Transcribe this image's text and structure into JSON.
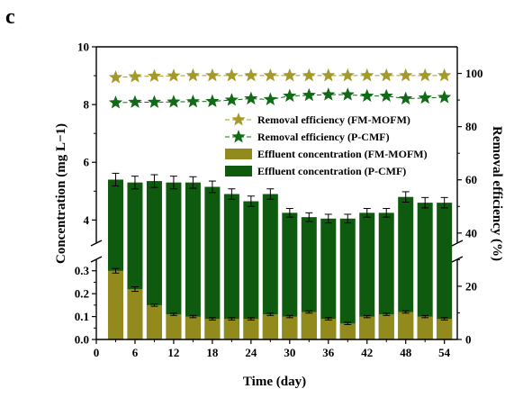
{
  "panel_label": "c",
  "colors": {
    "pcmf": "#0e5a0e",
    "fmmofm": "#938a1e",
    "star_fmmofm": "#a39a2a",
    "star_pcmf": "#116a16",
    "axis": "#000000"
  },
  "chart_data": {
    "type": "bar",
    "xlabel": "Time (day)",
    "ylabel": "Concentration (mg L−1)",
    "ylabel_right": "Removal efficiency (%)",
    "x_ticks": [
      0,
      6,
      12,
      18,
      24,
      30,
      36,
      42,
      48,
      54
    ],
    "xlim": [
      0,
      56
    ],
    "y_break": {
      "lower_range": [
        0,
        0.35
      ],
      "upper_range": [
        3.2,
        10
      ]
    },
    "y_ticks_lower": [
      0.0,
      0.1,
      0.2,
      0.3
    ],
    "y_ticks_upper": [
      4,
      6,
      8,
      10
    ],
    "y2_ticks": [
      0,
      20,
      40,
      60,
      80,
      100
    ],
    "y2lim": [
      0,
      110
    ],
    "x": [
      3,
      6,
      9,
      12,
      15,
      18,
      21,
      24,
      27,
      30,
      33,
      36,
      39,
      42,
      45,
      48,
      51,
      54
    ],
    "series": [
      {
        "name": "Effluent concentration (FM-MOFM)",
        "kind": "bar",
        "values": [
          0.3,
          0.22,
          0.15,
          0.11,
          0.1,
          0.09,
          0.09,
          0.09,
          0.11,
          0.1,
          0.12,
          0.09,
          0.07,
          0.1,
          0.11,
          0.12,
          0.1,
          0.09
        ],
        "errors": [
          0.01,
          0.01,
          0.005,
          0.005,
          0.005,
          0.005,
          0.005,
          0.005,
          0.005,
          0.005,
          0.005,
          0.005,
          0.005,
          0.005,
          0.005,
          0.005,
          0.005,
          0.005
        ]
      },
      {
        "name": "Effluent concentration (P-CMF)",
        "kind": "bar",
        "values": [
          5.4,
          5.3,
          5.35,
          5.3,
          5.3,
          5.15,
          4.9,
          4.65,
          4.9,
          4.25,
          4.1,
          4.05,
          4.05,
          4.25,
          4.25,
          4.8,
          4.6,
          4.6
        ],
        "errors": [
          0.22,
          0.22,
          0.22,
          0.22,
          0.2,
          0.2,
          0.18,
          0.18,
          0.18,
          0.15,
          0.15,
          0.15,
          0.15,
          0.15,
          0.15,
          0.18,
          0.18,
          0.18
        ]
      },
      {
        "name": "Removal efficiency (FM-MOFM)",
        "kind": "star",
        "values": [
          98.5,
          98.8,
          99.0,
          99.1,
          99.2,
          99.2,
          99.2,
          99.2,
          99.2,
          99.2,
          99.2,
          99.2,
          99.2,
          99.2,
          99.2,
          99.2,
          99.2,
          99.2
        ]
      },
      {
        "name": "Removal efficiency (P-CMF)",
        "kind": "star",
        "values": [
          89.0,
          89.2,
          89.2,
          89.3,
          89.4,
          89.5,
          90.0,
          90.5,
          90.2,
          91.5,
          91.8,
          92.0,
          92.0,
          91.5,
          91.5,
          90.5,
          90.8,
          91.0
        ]
      }
    ],
    "legend": [
      {
        "label": "Removal efficiency (FM-MOFM)",
        "marker": "star",
        "color": "#a39a2a"
      },
      {
        "label": "Removal efficiency (P-CMF)",
        "marker": "star",
        "color": "#116a16"
      },
      {
        "label": "Effluent concentration (FM-MOFM)",
        "marker": "bar",
        "color": "#938a1e"
      },
      {
        "label": "Effluent concentration (P-CMF)",
        "marker": "bar",
        "color": "#0e5a0e"
      }
    ],
    "legend_position": "center-right",
    "grid": false
  }
}
